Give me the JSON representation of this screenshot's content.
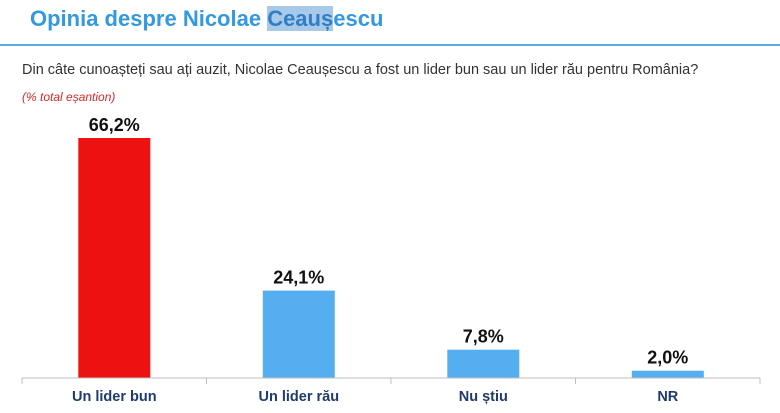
{
  "title_prefix": "Opinia despre Nicolae ",
  "title_highlight": "Ceauș",
  "title_suffix": "escu",
  "question": "Din câte cunoașteți sau ați auzit, Nicolae Ceaușescu a fost un lider bun sau un lider rău pentru România?",
  "note": "(% total eșantion)",
  "colors": {
    "title": "#3399e0",
    "highlight_bar": "#ee1111",
    "bar": "#55aef0",
    "axis": "#bfbfbf"
  },
  "chart_data": {
    "type": "bar",
    "categories": [
      "Un lider bun",
      "Un lider rău",
      "Nu știu",
      "NR"
    ],
    "values": [
      66.2,
      24.1,
      7.8,
      2.0
    ],
    "value_labels": [
      "66,2%",
      "24,1%",
      "7,8%",
      "2,0%"
    ],
    "bar_colors": [
      "#ee1111",
      "#55aef0",
      "#55aef0",
      "#55aef0"
    ],
    "ylim": [
      0,
      66.2
    ],
    "grid": false,
    "legend": "none",
    "xlabel": "",
    "ylabel": ""
  }
}
